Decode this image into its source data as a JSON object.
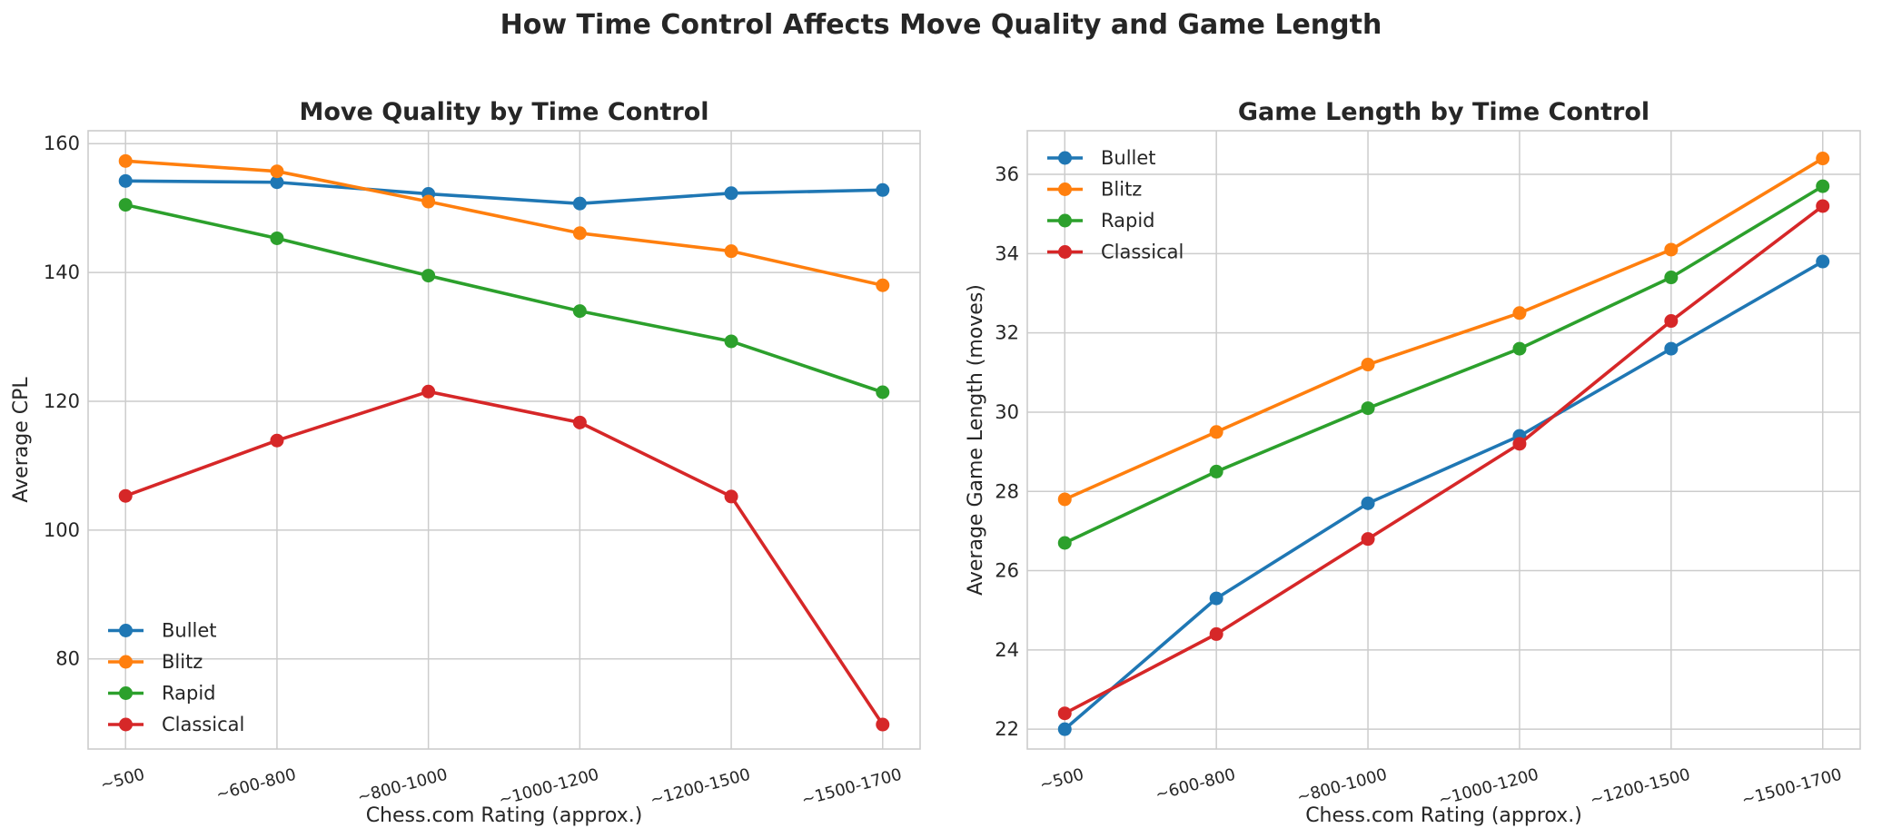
{
  "figure": {
    "title": "How Time Control Affects Move Quality and Game Length"
  },
  "chart_data": [
    {
      "type": "line",
      "title": "Move Quality by Time Control",
      "xlabel": "Chess.com Rating (approx.)",
      "ylabel": "Average CPL",
      "categories": [
        "~500",
        "~600-800",
        "~800-1000",
        "~1000-1200",
        "~1200-1500",
        "~1500-1700"
      ],
      "ylim": [
        66,
        162
      ],
      "yticks": [
        80,
        100,
        120,
        140,
        160
      ],
      "grid": true,
      "legend_position": "lower-left",
      "series": [
        {
          "name": "Bullet",
          "color": "#1f77b4",
          "values": [
            154.2,
            154.0,
            152.2,
            150.7,
            152.3,
            152.8
          ]
        },
        {
          "name": "Blitz",
          "color": "#ff7f0e",
          "values": [
            157.3,
            155.7,
            151.0,
            146.1,
            143.3,
            138.0
          ]
        },
        {
          "name": "Rapid",
          "color": "#2ca02c",
          "values": [
            150.5,
            145.3,
            139.5,
            134.0,
            129.3,
            121.4
          ]
        },
        {
          "name": "Classical",
          "color": "#d62728",
          "values": [
            105.3,
            113.9,
            121.5,
            116.7,
            105.2,
            69.8
          ]
        }
      ]
    },
    {
      "type": "line",
      "title": "Game Length by Time Control",
      "xlabel": "Chess.com Rating (approx.)",
      "ylabel": "Average Game Length (moves)",
      "categories": [
        "~500",
        "~600-800",
        "~800-1000",
        "~1000-1200",
        "~1200-1500",
        "~1500-1700"
      ],
      "ylim": [
        21.5,
        37.1
      ],
      "yticks": [
        22,
        24,
        26,
        28,
        30,
        32,
        34,
        36
      ],
      "grid": true,
      "legend_position": "upper-left",
      "series": [
        {
          "name": "Bullet",
          "color": "#1f77b4",
          "values": [
            22.0,
            25.3,
            27.7,
            29.4,
            31.6,
            33.8
          ]
        },
        {
          "name": "Blitz",
          "color": "#ff7f0e",
          "values": [
            27.8,
            29.5,
            31.2,
            32.5,
            34.1,
            36.4
          ]
        },
        {
          "name": "Rapid",
          "color": "#2ca02c",
          "values": [
            26.7,
            28.5,
            30.1,
            31.6,
            33.4,
            35.7
          ]
        },
        {
          "name": "Classical",
          "color": "#d62728",
          "values": [
            22.4,
            24.4,
            26.8,
            29.2,
            32.3,
            35.2
          ]
        }
      ]
    }
  ]
}
